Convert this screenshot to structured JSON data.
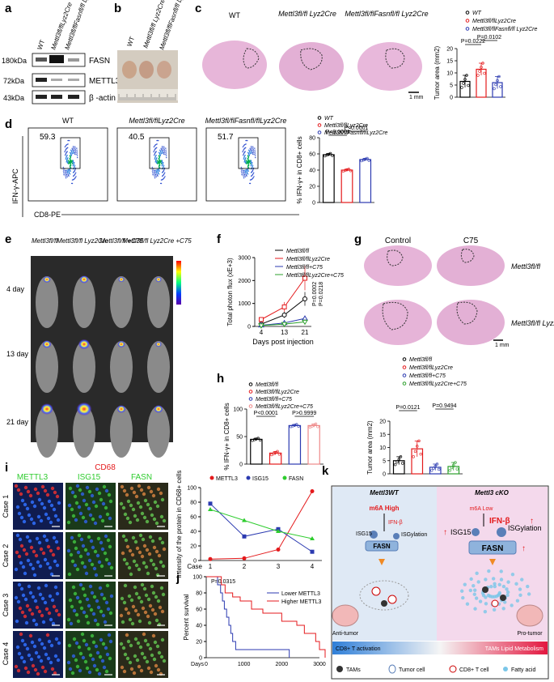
{
  "panel_labels": [
    "a",
    "b",
    "c",
    "d",
    "e",
    "f",
    "g",
    "h",
    "i",
    "j",
    "k"
  ],
  "panel_a": {
    "lanes": [
      "WT",
      "Mettl3fl/flLyz2Cre",
      "Mettl3fl/flFasnfl/fl Lyz2Cre"
    ],
    "mw": [
      "180kDa",
      "72kDa",
      "43kDa"
    ],
    "proteins": [
      "FASN",
      "METTL3",
      "β -actin"
    ]
  },
  "panel_b": {
    "lanes": [
      "WT",
      "Mettl3fl/fl Lyz2Cre",
      "Mettl3fl/flFasnfl/fl Lyz2Cre"
    ]
  },
  "panel_c": {
    "images": [
      "WT",
      "Mettl3fl/fl Lyz2Cre",
      "Mettl3fl/flFasnfl/fl Lyz2Cre"
    ],
    "scale": "1 mm",
    "chart_data": {
      "type": "bar",
      "categories": [
        "WT",
        "Mettl3fl/flLyz2Cre",
        "Mettl3fl/flFasnfl/fl Lyz2Cre"
      ],
      "values": [
        6.5,
        11.5,
        6.0
      ],
      "errors": [
        2.5,
        2.5,
        2.5
      ],
      "colors": [
        "#000000",
        "#e41a1c",
        "#2b3ab0"
      ],
      "ylabel": "Tumor area (mm2)",
      "ylim": [
        0,
        20
      ],
      "yticks": [
        "0",
        "5",
        "10",
        "15",
        "20"
      ],
      "pvalues": [
        "P=0.0222",
        "P=0.0102"
      ],
      "legend": [
        "WT",
        "Mettl3fl/flLyz2Cre",
        "Mettl3fl/flFasnfl/fl Lyz2Cre"
      ]
    }
  },
  "panel_d": {
    "plots": [
      {
        "title": "WT",
        "value": "59.3"
      },
      {
        "title": "Mettl3fl/flLyz2Cre",
        "value": "40.5"
      },
      {
        "title": "Mettl3fl/flFasnfl/flLyz2Cre",
        "value": "51.7"
      }
    ],
    "xlabel": "CD8-PE",
    "ylabel": "IFN-γ-APC",
    "chart_data": {
      "type": "bar",
      "categories": [
        "WT",
        "Mettl3fl/flLyz2Cre",
        "Mettl3fl/flFasnfl/flLyz2Cre"
      ],
      "values": [
        59,
        40,
        53
      ],
      "errors": [
        1.5,
        1.2,
        1.5
      ],
      "colors": [
        "#000000",
        "#e41a1c",
        "#2b3ab0"
      ],
      "ylabel": "% IFN-γ+ in CD8+ cells",
      "ylim": [
        0,
        80
      ],
      "yticks": [
        "0",
        "20",
        "40",
        "60",
        "80"
      ],
      "pvalues": [
        "P<0.0001",
        "P<0.0001"
      ],
      "legend": [
        "WT",
        "Mettl3fl/flLyz2Cre",
        "Mettl3fl/flFasnfl/flLyz2Cre"
      ]
    }
  },
  "panel_e": {
    "columns": [
      "Mettl3fl/fl",
      "Mettl3fl/fl Lyz2Cre",
      "Mettl3fl/fl +C75",
      "Mettl3fl/fl Lyz2Cre +C75"
    ],
    "rows": [
      "4 day",
      "13 day",
      "21 day"
    ]
  },
  "panel_f": {
    "chart_data": {
      "type": "line",
      "x": [
        4,
        13,
        21
      ],
      "series": [
        {
          "name": "Mettl3fl/fl",
          "values": [
            100,
            500,
            1200
          ],
          "color": "#000000"
        },
        {
          "name": "Mettl3fl/flLyz2Cre",
          "values": [
            300,
            850,
            2100
          ],
          "color": "#e41a1c"
        },
        {
          "name": "Mettl3fl/fl+C75",
          "values": [
            50,
            150,
            350
          ],
          "color": "#2b3ab0"
        },
        {
          "name": "Mettl3fl/flLyz2Cre+C75",
          "values": [
            40,
            100,
            200
          ],
          "color": "#2ca02c"
        }
      ],
      "xlabel": "Days post injection",
      "ylabel": "Total photon flux (xE+3)",
      "ylim": [
        0,
        3000
      ],
      "yticks": [
        "0",
        "1000",
        "2000",
        "3000"
      ],
      "xticks": [
        "4",
        "13",
        "21"
      ],
      "pvalues": [
        "P=0.0002",
        "P=0.0218"
      ]
    }
  },
  "panel_g": {
    "cols": [
      "Control",
      "C75"
    ],
    "rows": [
      "Mettl3fl/fl",
      "Mettl3fl/fl Lyz2Cre"
    ],
    "scale": "1 mm",
    "chart_data": {
      "type": "bar",
      "categories": [
        "Mettl3fl/fl",
        "Mettl3fl/flLyz2Cre",
        "Mettl3fl/fl+C75",
        "Mettl3fl/flLyz2Cre+C75"
      ],
      "values": [
        5.0,
        9.5,
        2.5,
        2.8
      ],
      "errors": [
        1.5,
        3.0,
        1.2,
        1.5
      ],
      "colors": [
        "#000000",
        "#e41a1c",
        "#2b3ab0",
        "#2ca02c"
      ],
      "ylabel": "Tumor area (mm2)",
      "ylim": [
        0,
        20
      ],
      "yticks": [
        "0",
        "5",
        "10",
        "15",
        "20"
      ],
      "pvalues": [
        "P=0.0121",
        "P=0.9494"
      ],
      "legend": [
        "Mettl3fl/fl",
        "Mettl3fl/flLyz2Cre",
        "Mettl3fl/fl+C75",
        "Mettl3fl/flLyz2Cre+C75"
      ]
    }
  },
  "panel_h": {
    "chart_data": {
      "type": "bar",
      "categories": [
        "Mettl3fl/fl",
        "Mettl3fl/flLyz2Cre",
        "Mettl3fl/fl+C75",
        "Mettl3fl/flLyz2Cre+C75"
      ],
      "values": [
        45,
        20,
        70,
        70
      ],
      "errors": [
        2,
        3,
        2,
        3
      ],
      "colors": [
        "#000000",
        "#e41a1c",
        "#2b3ab0",
        "#ee8888"
      ],
      "ylabel": "% IFN-γ+ in CD8+ cells",
      "ylim": [
        0,
        100
      ],
      "yticks": [
        "0",
        "50",
        "100"
      ],
      "pvalues": [
        "P<0.0001",
        "P>0.9999"
      ],
      "legend": [
        "Mettl3fl/fl",
        "Mettl3fl/flLyz2Cre",
        "Mettl3fl/fl+C75",
        "Mettl3fl/flLyz2Cre+C75"
      ]
    }
  },
  "panel_i": {
    "header": "CD68",
    "columns": [
      "METTL3",
      "ISG15",
      "FASN"
    ],
    "cases": [
      "Case 1",
      "Case 2",
      "Case 3",
      "Case 4"
    ],
    "chart_data": {
      "type": "scatter",
      "x": [
        1,
        2,
        3,
        4
      ],
      "series": [
        {
          "name": "METTL3",
          "values": [
            2,
            3,
            15,
            95
          ],
          "color": "#e41a1c"
        },
        {
          "name": "ISG15",
          "values": [
            78,
            33,
            43,
            12
          ],
          "color": "#2b3ab0"
        },
        {
          "name": "FASN",
          "values": [
            70,
            55,
            40,
            30
          ],
          "color": "#2ecc2e"
        }
      ],
      "xlabel": "Case",
      "ylabel": "Intensity of the protein in CD68+ cells",
      "ylim": [
        0,
        100
      ],
      "yticks": [
        "0",
        "20",
        "40",
        "60",
        "80",
        "100"
      ],
      "xticks": [
        "1",
        "2",
        "3",
        "4"
      ]
    }
  },
  "panel_j": {
    "chart_data": {
      "type": "line",
      "series": [
        {
          "name": "Lower METTL3",
          "color": "#2b3ab0"
        },
        {
          "name": "Higher METTL3",
          "color": "#e41a1c"
        }
      ],
      "xlabel": "Days",
      "ylabel": "Percent survival",
      "xlim": [
        0,
        3000
      ],
      "ylim": [
        0,
        100
      ],
      "xticks": [
        "0",
        "1000",
        "2000",
        "3000"
      ],
      "yticks": [
        "0",
        "20",
        "40",
        "60",
        "80",
        "100"
      ],
      "pvalue": "P=0.0315"
    }
  },
  "panel_k": {
    "left_title": "Mettl3WT",
    "right_title": "Mettl3 cKO",
    "left": {
      "m6a": "m6A High",
      "ifn": "IFN-β",
      "isg": "ISG15",
      "isgyl": "ISGylation",
      "fasn": "FASN",
      "label": "Anti-tumor"
    },
    "right": {
      "m6a": "m6A Low",
      "ifn": "IFN-β",
      "isg": "ISG15",
      "isgyl": "ISGylation",
      "fasn": "FASN",
      "label": "Pro-tumor"
    },
    "bar_left": "CD8+ T activation",
    "bar_right": "TAMs Lipid Metabolism",
    "legend": [
      "TAMs",
      "Tumor cell",
      "CD8+ T cell",
      "Fatty acid"
    ]
  }
}
